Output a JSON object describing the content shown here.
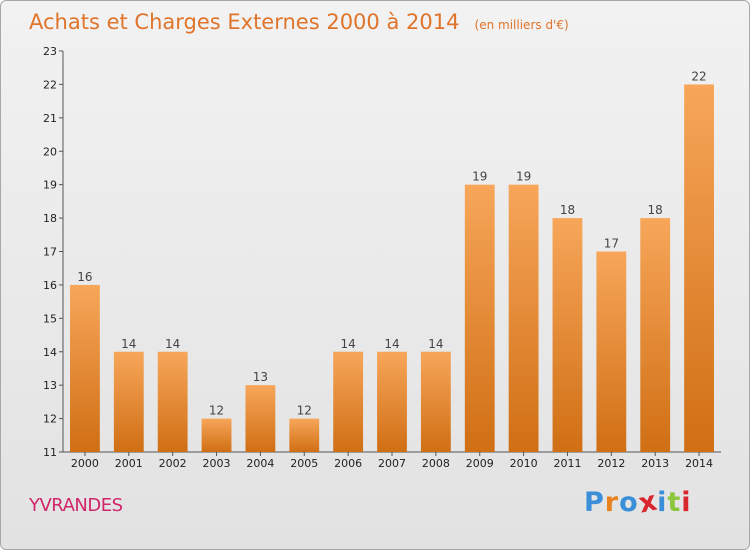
{
  "chart_data": {
    "type": "bar",
    "title": "Achats et Charges Externes 2000 à 2014",
    "subtitle": "(en milliers d'€)",
    "categories": [
      "2000",
      "2001",
      "2002",
      "2003",
      "2004",
      "2005",
      "2006",
      "2007",
      "2008",
      "2009",
      "2010",
      "2011",
      "2012",
      "2013",
      "2014"
    ],
    "values": [
      16,
      14,
      14,
      12,
      13,
      12,
      14,
      14,
      14,
      19,
      19,
      18,
      17,
      18,
      22
    ],
    "ylim": [
      11,
      23
    ],
    "yticks": [
      11,
      12,
      13,
      14,
      15,
      16,
      17,
      18,
      19,
      20,
      21,
      22,
      23
    ],
    "grid": false,
    "bar_color_top": "#f7a65a",
    "bar_color_bottom": "#d06f14"
  },
  "footer": {
    "commune": "YVRANDES",
    "logo_letters": [
      "P",
      "r",
      "o",
      "x",
      "i",
      "t",
      "i"
    ],
    "logo_colors": [
      "#3a8fd8",
      "#e8821e",
      "#3a8fd8",
      "#d8252e",
      "#3a8fd8",
      "#8cc63f",
      "#d8252e"
    ]
  }
}
